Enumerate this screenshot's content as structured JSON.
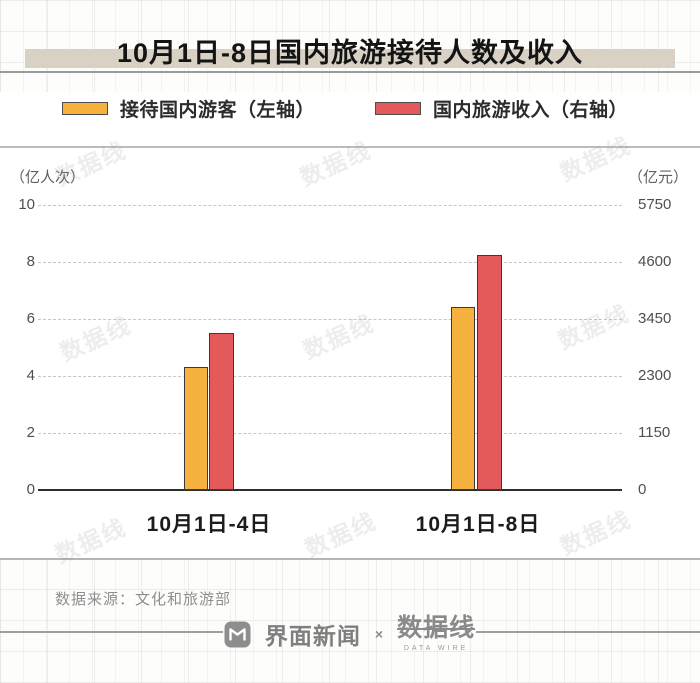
{
  "title": "10月1日-8日国内旅游接待人数及收入",
  "source": "数据来源：文化和旅游部",
  "watermark_text": "数据线",
  "footer": {
    "brand_left": "界面新闻",
    "separator": "×",
    "brand_right": "数据线",
    "brand_right_sub": "DATA WIRE"
  },
  "chart_data": {
    "type": "bar",
    "title": "10月1日-8日国内旅游接待人数及收入",
    "categories": [
      "10月1日-4日",
      "10月1日-8日"
    ],
    "series": [
      {
        "name": "接待国内游客（左轴）",
        "axis": "left",
        "unit": "亿人次",
        "values": [
          4.25,
          6.35
        ],
        "color": "#F6B23E"
      },
      {
        "name": "国内旅游收入（右轴）",
        "axis": "right",
        "unit": "亿元",
        "values": [
          3120,
          4700
        ],
        "color": "#E4595A"
      }
    ],
    "left_axis": {
      "label": "（亿人次）",
      "range": [
        0,
        10
      ],
      "ticks": [
        "10",
        "8",
        "6",
        "4",
        "2",
        "0"
      ]
    },
    "right_axis": {
      "label": "（亿元）",
      "range": [
        0,
        5750
      ],
      "ticks": [
        "5750",
        "4600",
        "3450",
        "2300",
        "1150",
        "0"
      ]
    },
    "grid": "dashed horizontal gridlines",
    "legend_position": "top"
  }
}
